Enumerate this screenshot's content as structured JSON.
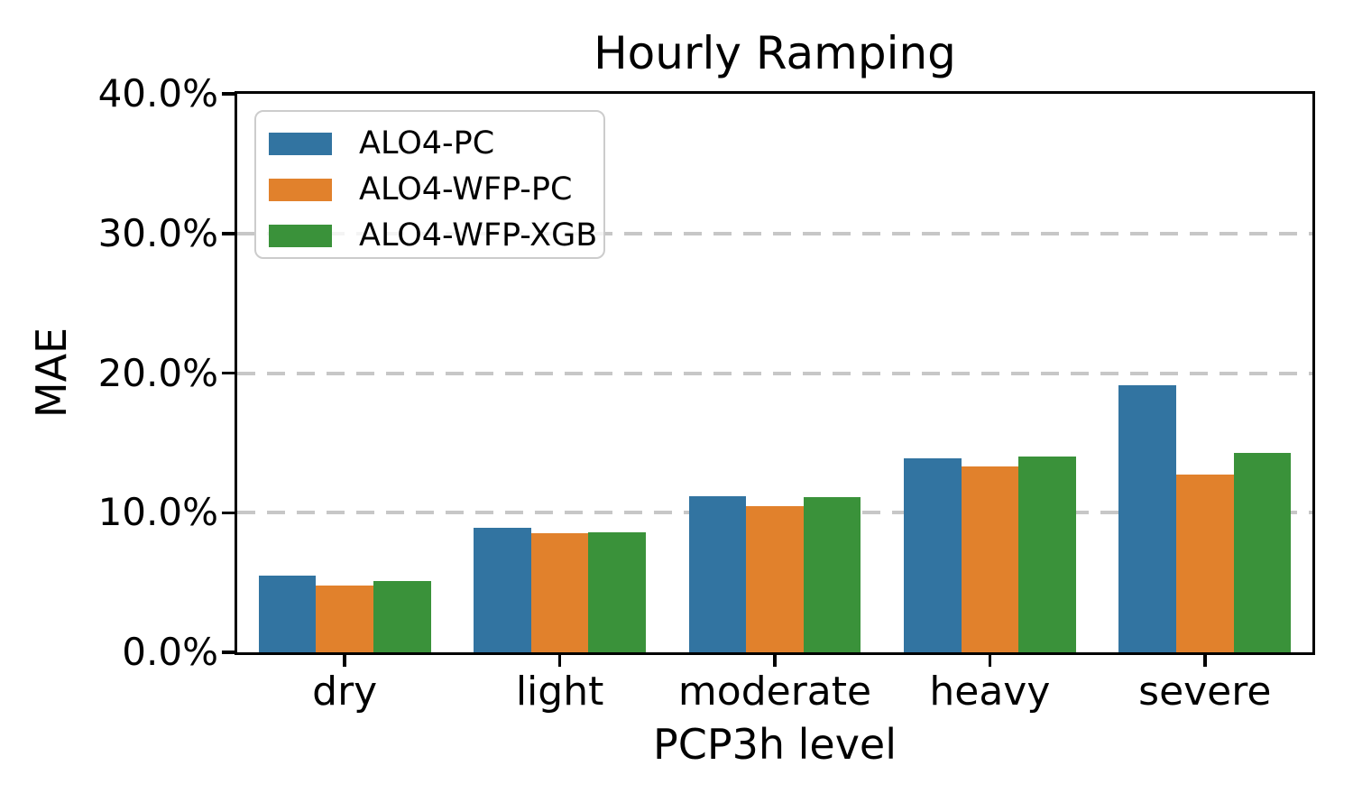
{
  "chart_data": {
    "type": "bar",
    "title": "Hourly Ramping",
    "xlabel": "PCP3h level",
    "ylabel": "MAE",
    "value_unit": "percent",
    "categories": [
      "dry",
      "light",
      "moderate",
      "heavy",
      "severe"
    ],
    "series": [
      {
        "name": "ALO4-PC",
        "color": "#3274A1",
        "values": [
          5.5,
          8.9,
          11.2,
          13.9,
          19.1
        ]
      },
      {
        "name": "ALO4-WFP-PC",
        "color": "#E1812C",
        "values": [
          4.8,
          8.5,
          10.5,
          13.3,
          12.7
        ]
      },
      {
        "name": "ALO4-WFP-XGB",
        "color": "#3A923A",
        "values": [
          5.1,
          8.6,
          11.1,
          14.0,
          14.3
        ]
      }
    ],
    "y_axis": {
      "min": 0,
      "max": 40,
      "tick_step": 10,
      "tick_labels": [
        "0.0%",
        "10.0%",
        "20.0%",
        "30.0%",
        "40.0%"
      ]
    },
    "grid": {
      "visible": true,
      "axis": "y",
      "style": "dashed",
      "color": "#c7c7c7"
    },
    "legend": {
      "position": "upper left",
      "labels": [
        "ALO4-PC",
        "ALO4-WFP-PC",
        "ALO4-WFP-XGB"
      ]
    }
  }
}
